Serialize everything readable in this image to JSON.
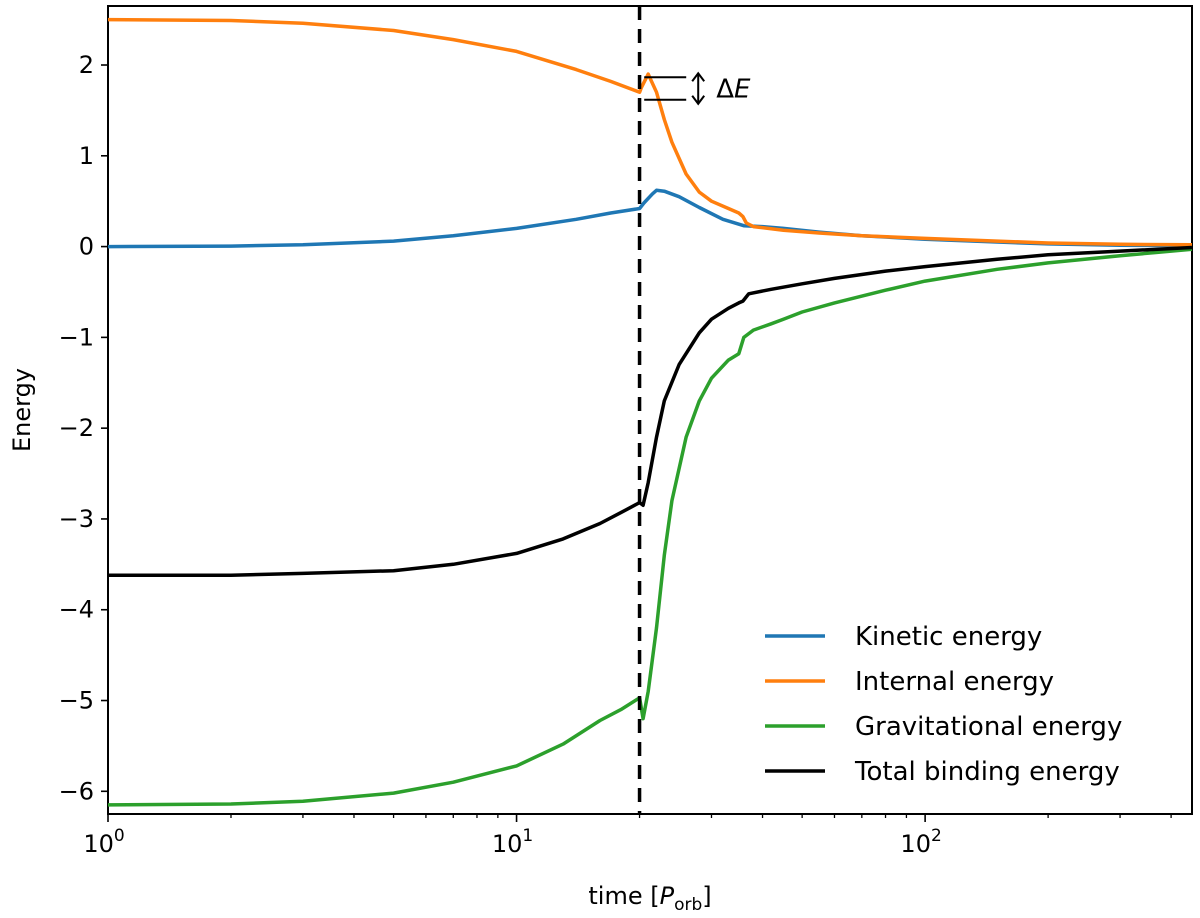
{
  "chart_data": {
    "type": "line",
    "title": "",
    "xlabel": "time [P_orb]",
    "xlabel_main": "time [",
    "xlabel_sym": "P",
    "xlabel_sub": "orb",
    "xlabel_close": "]",
    "ylabel": "Energy",
    "xscale": "log",
    "xlim": [
      1,
      450
    ],
    "ylim": [
      -6.25,
      2.65
    ],
    "grid": false,
    "legend_position": "lower-right",
    "x_ticks": [
      {
        "value": 1,
        "base": "10",
        "exp": "0"
      },
      {
        "value": 10,
        "base": "10",
        "exp": "1"
      },
      {
        "value": 100,
        "base": "10",
        "exp": "2"
      }
    ],
    "y_ticks": [
      {
        "value": 2,
        "label": "2"
      },
      {
        "value": 1,
        "label": "1"
      },
      {
        "value": 0,
        "label": "0"
      },
      {
        "value": -1,
        "label": "−1"
      },
      {
        "value": -2,
        "label": "−2"
      },
      {
        "value": -3,
        "label": "−3"
      },
      {
        "value": -4,
        "label": "−4"
      },
      {
        "value": -5,
        "label": "−5"
      },
      {
        "value": -6,
        "label": "−6"
      }
    ],
    "vline": {
      "x": 20,
      "style": "dashed",
      "color": "#000000"
    },
    "annotation": {
      "label": "ΔE",
      "prefix": "Δ",
      "symbol": "E",
      "x": 21,
      "y_top": 1.92,
      "y_bottom": 1.65
    },
    "series": [
      {
        "name": "Kinetic energy",
        "color": "#1f77b4",
        "points": [
          [
            1,
            0
          ],
          [
            2,
            0.005
          ],
          [
            3,
            0.02
          ],
          [
            5,
            0.06
          ],
          [
            7,
            0.12
          ],
          [
            10,
            0.2
          ],
          [
            14,
            0.3
          ],
          [
            17,
            0.37
          ],
          [
            20,
            0.42
          ],
          [
            20.5,
            0.48
          ],
          [
            21.5,
            0.58
          ],
          [
            22,
            0.62
          ],
          [
            23,
            0.61
          ],
          [
            25,
            0.55
          ],
          [
            28,
            0.43
          ],
          [
            32,
            0.3
          ],
          [
            36,
            0.23
          ],
          [
            40,
            0.22
          ],
          [
            45,
            0.2
          ],
          [
            55,
            0.16
          ],
          [
            70,
            0.12
          ],
          [
            100,
            0.08
          ],
          [
            150,
            0.05
          ],
          [
            200,
            0.03
          ],
          [
            300,
            0.015
          ],
          [
            450,
            0.01
          ]
        ]
      },
      {
        "name": "Internal energy",
        "color": "#ff7f0e",
        "points": [
          [
            1,
            2.5
          ],
          [
            2,
            2.49
          ],
          [
            3,
            2.46
          ],
          [
            5,
            2.38
          ],
          [
            7,
            2.28
          ],
          [
            10,
            2.15
          ],
          [
            14,
            1.95
          ],
          [
            17,
            1.82
          ],
          [
            20,
            1.7
          ],
          [
            20.2,
            1.75
          ],
          [
            21,
            1.9
          ],
          [
            22,
            1.7
          ],
          [
            23,
            1.4
          ],
          [
            24,
            1.15
          ],
          [
            26,
            0.8
          ],
          [
            28,
            0.6
          ],
          [
            30,
            0.5
          ],
          [
            33,
            0.42
          ],
          [
            35,
            0.37
          ],
          [
            35.8,
            0.33
          ],
          [
            36.5,
            0.26
          ],
          [
            38,
            0.22
          ],
          [
            45,
            0.18
          ],
          [
            55,
            0.15
          ],
          [
            70,
            0.12
          ],
          [
            100,
            0.09
          ],
          [
            150,
            0.06
          ],
          [
            200,
            0.04
          ],
          [
            300,
            0.025
          ],
          [
            450,
            0.02
          ]
        ]
      },
      {
        "name": "Gravitational energy",
        "color": "#2ca02c",
        "points": [
          [
            1,
            -6.15
          ],
          [
            2,
            -6.14
          ],
          [
            3,
            -6.11
          ],
          [
            5,
            -6.02
          ],
          [
            7,
            -5.9
          ],
          [
            10,
            -5.72
          ],
          [
            13,
            -5.48
          ],
          [
            16,
            -5.22
          ],
          [
            18,
            -5.1
          ],
          [
            20,
            -4.97
          ],
          [
            20.4,
            -5.2
          ],
          [
            21,
            -4.9
          ],
          [
            22,
            -4.2
          ],
          [
            23,
            -3.4
          ],
          [
            24,
            -2.8
          ],
          [
            26,
            -2.1
          ],
          [
            28,
            -1.7
          ],
          [
            30,
            -1.45
          ],
          [
            33,
            -1.25
          ],
          [
            35,
            -1.18
          ],
          [
            36,
            -1.0
          ],
          [
            38,
            -0.92
          ],
          [
            42,
            -0.85
          ],
          [
            45,
            -0.8
          ],
          [
            50,
            -0.72
          ],
          [
            60,
            -0.62
          ],
          [
            80,
            -0.48
          ],
          [
            100,
            -0.38
          ],
          [
            150,
            -0.25
          ],
          [
            200,
            -0.18
          ],
          [
            300,
            -0.1
          ],
          [
            450,
            -0.03
          ]
        ]
      },
      {
        "name": "Total binding energy",
        "color": "#000000",
        "points": [
          [
            1,
            -3.62
          ],
          [
            2,
            -3.62
          ],
          [
            3,
            -3.6
          ],
          [
            5,
            -3.57
          ],
          [
            7,
            -3.5
          ],
          [
            10,
            -3.38
          ],
          [
            13,
            -3.22
          ],
          [
            16,
            -3.05
          ],
          [
            18,
            -2.93
          ],
          [
            20,
            -2.82
          ],
          [
            20.4,
            -2.85
          ],
          [
            21,
            -2.6
          ],
          [
            22,
            -2.1
          ],
          [
            23,
            -1.7
          ],
          [
            25,
            -1.3
          ],
          [
            28,
            -0.95
          ],
          [
            30,
            -0.8
          ],
          [
            33,
            -0.68
          ],
          [
            35,
            -0.62
          ],
          [
            35.8,
            -0.6
          ],
          [
            37,
            -0.52
          ],
          [
            42,
            -0.47
          ],
          [
            50,
            -0.41
          ],
          [
            60,
            -0.35
          ],
          [
            80,
            -0.27
          ],
          [
            100,
            -0.22
          ],
          [
            150,
            -0.14
          ],
          [
            200,
            -0.09
          ],
          [
            300,
            -0.05
          ],
          [
            450,
            -0.01
          ]
        ]
      }
    ]
  }
}
